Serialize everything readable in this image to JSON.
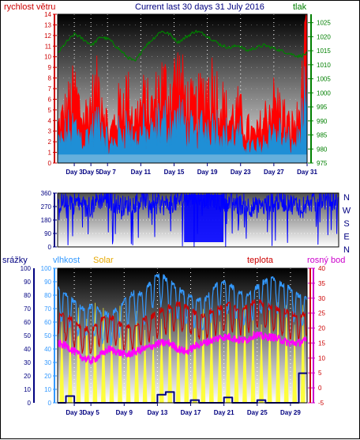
{
  "header": {
    "left_label": "rychlost větru",
    "title": "Current last 30 days 31 July 2016",
    "right_label": "tlak"
  },
  "direction_labels": [
    "N",
    "W",
    "S",
    "E",
    "N"
  ],
  "bottom_header": {
    "label_rain": "srážky",
    "label_humidity": "vlhkost",
    "label_solar": "Solar",
    "label_temp": "teplota",
    "label_dew": "rosný bod"
  },
  "colors": {
    "wind": "#ff0000",
    "wind_avg": "#1f8fd6",
    "pressure": "#008000",
    "direction": "#0000ff",
    "humidity": "#3399ff",
    "solar": "#ffff33",
    "temp": "#cc0000",
    "dew": "#ff00ff",
    "rain": "#000080",
    "axis_text_blue": "#000080"
  },
  "chart_data": [
    {
      "type": "line",
      "title": "Current last 30 days 31 July 2016",
      "x_ticks": [
        "Day 3",
        "Day 5",
        "Day 7",
        "Day 11",
        "Day 15",
        "Day 19",
        "Day 23",
        "Day 27",
        "Day 31"
      ],
      "y_left_ticks": [
        "0",
        "1",
        "2",
        "3",
        "4",
        "5",
        "6",
        "7",
        "8",
        "9",
        "10",
        "11",
        "12",
        "13",
        "14"
      ],
      "y_right_ticks": [
        "975",
        "980",
        "985",
        "990",
        "995",
        "1000",
        "1005",
        "1010",
        "1015",
        "1020",
        "1025"
      ],
      "ylim_left": [
        0,
        14
      ],
      "ylim_right": [
        975,
        1028
      ],
      "series": [
        {
          "name": "rychlost větru",
          "axis": "left",
          "values": [
            4,
            6,
            8,
            5,
            7,
            9,
            3,
            6,
            8,
            5,
            7,
            6,
            9,
            8,
            10,
            7,
            6,
            8,
            9,
            7,
            5,
            6,
            4,
            3,
            5,
            7,
            6,
            4,
            5,
            13
          ]
        },
        {
          "name": "tlak",
          "axis": "right",
          "values": [
            1014,
            1018,
            1021,
            1019,
            1017,
            1020,
            1019,
            1016,
            1013,
            1011,
            1016,
            1019,
            1022,
            1021,
            1018,
            1020,
            1022,
            1021,
            1019,
            1017,
            1016,
            1017,
            1015,
            1016,
            1017,
            1016,
            1015,
            1014,
            1013,
            1014
          ]
        }
      ]
    },
    {
      "type": "line",
      "title": "",
      "y_ticks": [
        "0",
        "90",
        "180",
        "270",
        "360"
      ],
      "ylim": [
        0,
        360
      ],
      "series": [
        {
          "name": "",
          "values": [
            280,
            320,
            300,
            250,
            310,
            330,
            290,
            270,
            300,
            320,
            310,
            280,
            300,
            330,
            340,
            330,
            320,
            310,
            300,
            280,
            270,
            260,
            300,
            310,
            290,
            280,
            300,
            320,
            310,
            300
          ]
        }
      ]
    },
    {
      "type": "line",
      "title": "",
      "x_ticks": [
        "Day 3",
        "Day 5",
        "Day 9",
        "Day 13",
        "Day 17",
        "Day 21",
        "Day 25",
        "Day 29"
      ],
      "y_left_ticks": [
        "0",
        "10",
        "20",
        "30",
        "40",
        "50",
        "60",
        "70",
        "80",
        "90",
        "100"
      ],
      "y_right_ticks": [
        "-5",
        "0",
        "5",
        "10",
        "15",
        "20",
        "25",
        "30",
        "35",
        "40"
      ],
      "ylim_left": [
        0,
        100
      ],
      "ylim_right": [
        -5,
        40
      ],
      "series": [
        {
          "name": "vlhkost",
          "axis": "left",
          "values": [
            85,
            80,
            75,
            70,
            72,
            68,
            65,
            70,
            78,
            82,
            80,
            92,
            95,
            90,
            85,
            80,
            78,
            75,
            85,
            90,
            88,
            82,
            80,
            85,
            90,
            92,
            88,
            85,
            80,
            78
          ]
        },
        {
          "name": "Solar",
          "axis": "left",
          "values": [
            70,
            65,
            75,
            60,
            72,
            68,
            55,
            74,
            66,
            70,
            62,
            50,
            60,
            72,
            65,
            70,
            75,
            68,
            72,
            70,
            66,
            74,
            70,
            72,
            68,
            70,
            74,
            70,
            68,
            72
          ]
        },
        {
          "name": "teplota",
          "axis": "right",
          "values": [
            25,
            24,
            22,
            20,
            19,
            23,
            24,
            22,
            20,
            21,
            23,
            24,
            26,
            27,
            28,
            27,
            25,
            24,
            26,
            27,
            28,
            26,
            27,
            29,
            28,
            27,
            26,
            25,
            24,
            25
          ]
        },
        {
          "name": "rosný bod",
          "axis": "right",
          "values": [
            15,
            14,
            12,
            10,
            9,
            11,
            13,
            12,
            11,
            12,
            13,
            14,
            15,
            15,
            13,
            12,
            14,
            15,
            16,
            17,
            17,
            16,
            16,
            18,
            17,
            17,
            16,
            15,
            15,
            16
          ]
        },
        {
          "name": "srážky",
          "axis": "left",
          "values": [
            0,
            5,
            0,
            0,
            0,
            0,
            0,
            0,
            0,
            0,
            0,
            0,
            6,
            8,
            0,
            0,
            2,
            0,
            0,
            0,
            4,
            0,
            0,
            0,
            2,
            0,
            0,
            0,
            0,
            22
          ]
        }
      ]
    }
  ]
}
